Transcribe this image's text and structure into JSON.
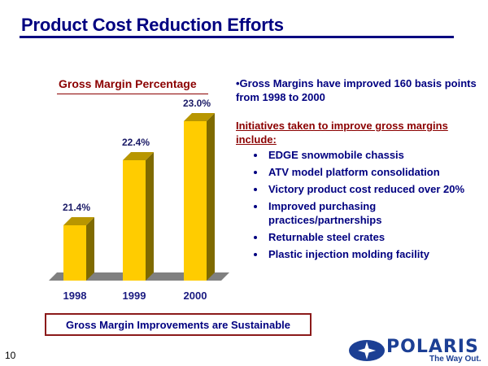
{
  "slide": {
    "title": "Product Cost Reduction Efforts",
    "page_number": "10"
  },
  "chart_data": {
    "type": "bar",
    "title": "Gross Margin Percentage",
    "categories": [
      "1998",
      "1999",
      "2000"
    ],
    "values": [
      21.4,
      22.4,
      23.0
    ],
    "value_labels": [
      "21.4%",
      "22.4%",
      "23.0%"
    ],
    "xlabel": "",
    "ylabel": "",
    "grid": false,
    "style": "3d-column",
    "colors": {
      "bar_face": "#FFCC00",
      "bar_side": "#7F6A00",
      "bar_top": "#B89600",
      "floor": "#808080"
    }
  },
  "text": {
    "lead": "•Gross Margins have improved 160 basis points from 1998 to 2000",
    "initiatives_heading": "Initiatives taken to improve gross margins include:",
    "initiatives": [
      "EDGE snowmobile chassis",
      "ATV model platform consolidation",
      "Victory product cost reduced over 20%",
      "Improved purchasing practices/partnerships",
      "Returnable steel crates",
      "Plastic injection molding facility"
    ],
    "conclusion": "Gross Margin Improvements are Sustainable"
  },
  "logo": {
    "brand": "POLARIS",
    "tagline": "The Way Out.",
    "registered": "®"
  },
  "colors": {
    "title": "#000080",
    "accent_red": "#8B0000"
  }
}
